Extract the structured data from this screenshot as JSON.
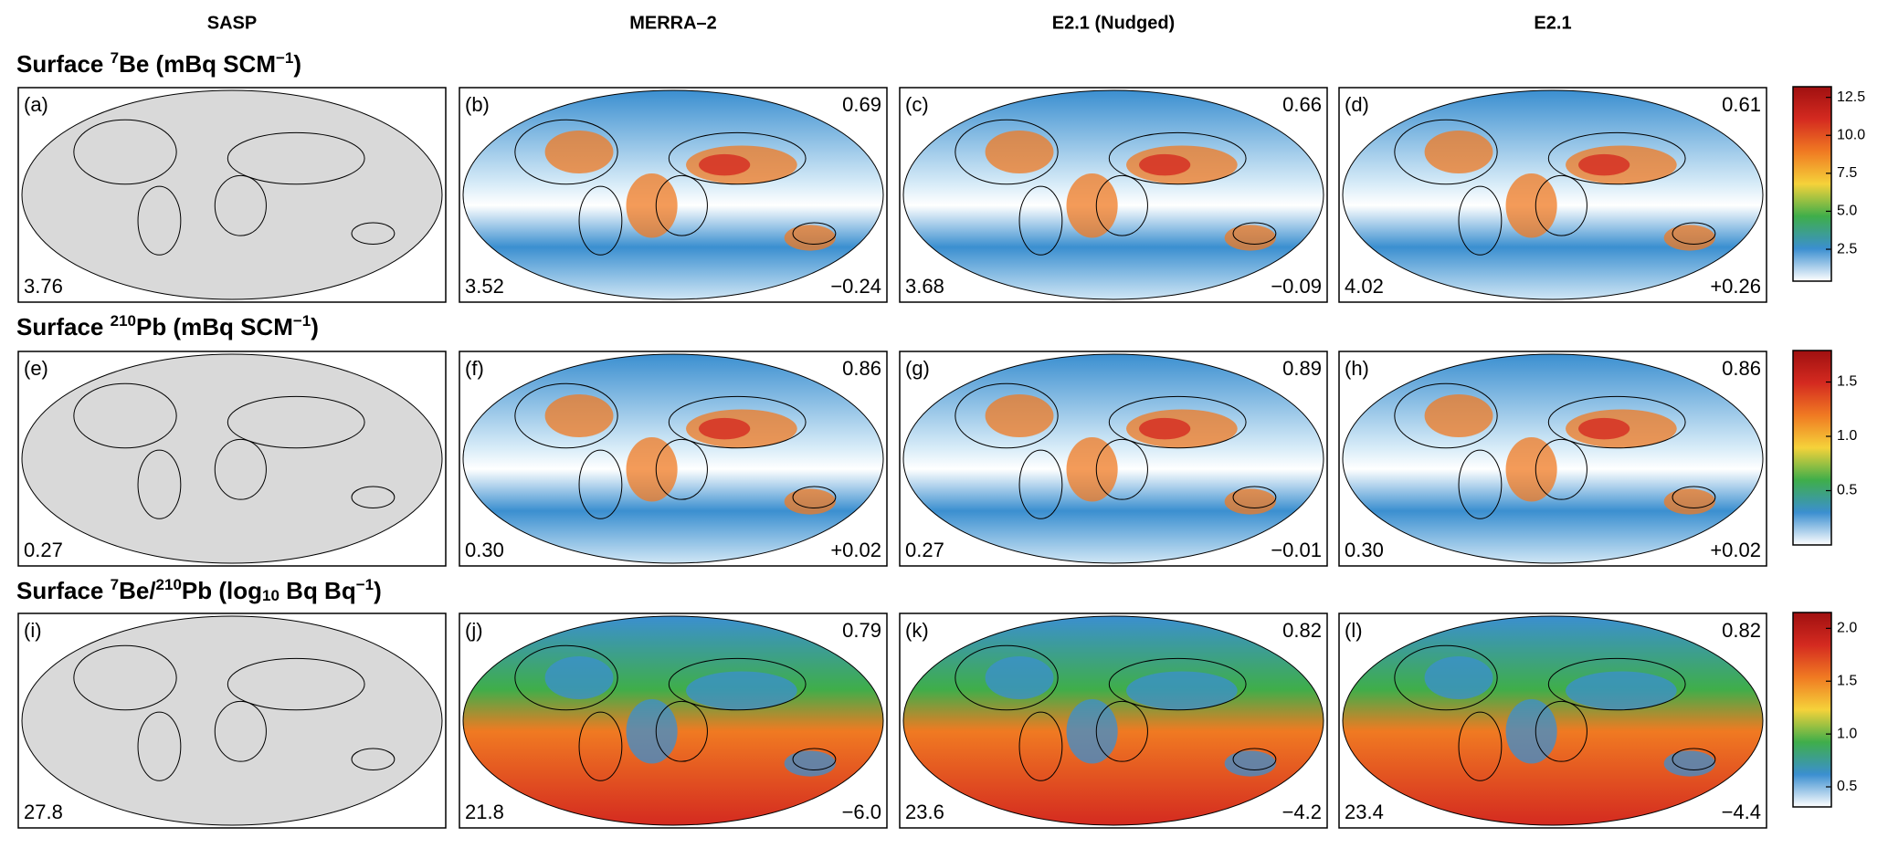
{
  "columns": [
    "SASP",
    "MERRA–2",
    "E2.1 (Nudged)",
    "E2.1"
  ],
  "rows": [
    {
      "title": [
        {
          "text": "Surface "
        },
        {
          "text": "7",
          "pos": "sup"
        },
        {
          "text": "Be (mBq SCM"
        },
        {
          "text": "−1",
          "pos": "sup"
        },
        {
          "text": ")"
        }
      ],
      "panels": [
        {
          "label": "(a)",
          "bottom_left": "3.76"
        },
        {
          "label": "(b)",
          "top_right": "0.69",
          "bottom_left": "3.52",
          "bottom_right": "−0.24"
        },
        {
          "label": "(c)",
          "top_right": "0.66",
          "bottom_left": "3.68",
          "bottom_right": "−0.09"
        },
        {
          "label": "(d)",
          "top_right": "0.61",
          "bottom_left": "4.02",
          "bottom_right": "+0.26"
        }
      ],
      "colorbar": {
        "lim": [
          0.4,
          13.2
        ],
        "ticks": [
          2.5,
          {
            "value": 5,
            "label": "5.0"
          },
          7.5,
          {
            "value": 10,
            "label": "10.0"
          },
          12.5
        ]
      }
    },
    {
      "title": [
        {
          "text": "Surface "
        },
        {
          "text": "210",
          "pos": "sup"
        },
        {
          "text": "Pb (mBq SCM"
        },
        {
          "text": "−1",
          "pos": "sup"
        },
        {
          "text": ")"
        }
      ],
      "panels": [
        {
          "label": "(e)",
          "bottom_left": "0.27"
        },
        {
          "label": "(f)",
          "top_right": "0.86",
          "bottom_left": "0.30",
          "bottom_right": "+0.02"
        },
        {
          "label": "(g)",
          "top_right": "0.89",
          "bottom_left": "0.27",
          "bottom_right": "−0.01"
        },
        {
          "label": "(h)",
          "top_right": "0.86",
          "bottom_left": "0.30",
          "bottom_right": "+0.02"
        }
      ],
      "colorbar": {
        "lim": [
          0,
          1.79
        ],
        "ticks": [
          0.5,
          {
            "value": 1,
            "label": "1.0"
          },
          1.5
        ]
      }
    },
    {
      "title": [
        {
          "text": "Surface "
        },
        {
          "text": "7",
          "pos": "sup"
        },
        {
          "text": "Be/"
        },
        {
          "text": "210",
          "pos": "sup"
        },
        {
          "text": "Pb (log"
        },
        {
          "text": "10",
          "pos": "sub"
        },
        {
          "text": " Bq Bq"
        },
        {
          "text": "−1",
          "pos": "sup"
        },
        {
          "text": ")"
        }
      ],
      "panels": [
        {
          "label": "(i)",
          "bottom_left": "27.8"
        },
        {
          "label": "(j)",
          "top_right": "0.79",
          "bottom_left": "21.8",
          "bottom_right": "−6.0"
        },
        {
          "label": "(k)",
          "top_right": "0.82",
          "bottom_left": "23.6",
          "bottom_right": "−4.2"
        },
        {
          "label": "(l)",
          "top_right": "0.82",
          "bottom_left": "23.4",
          "bottom_right": "−4.4"
        }
      ],
      "colorbar": {
        "lim": [
          0.31,
          2.15
        ],
        "ticks": [
          0.5,
          {
            "value": 1,
            "label": "1.0"
          },
          1.5,
          {
            "value": 2,
            "label": "2.0"
          }
        ]
      }
    }
  ],
  "colors": [
    "#ffffff",
    "#3b8fd0",
    "#3fae4a",
    "#f5d23a",
    "#f07a22",
    "#d42a20",
    "#a01010"
  ]
}
